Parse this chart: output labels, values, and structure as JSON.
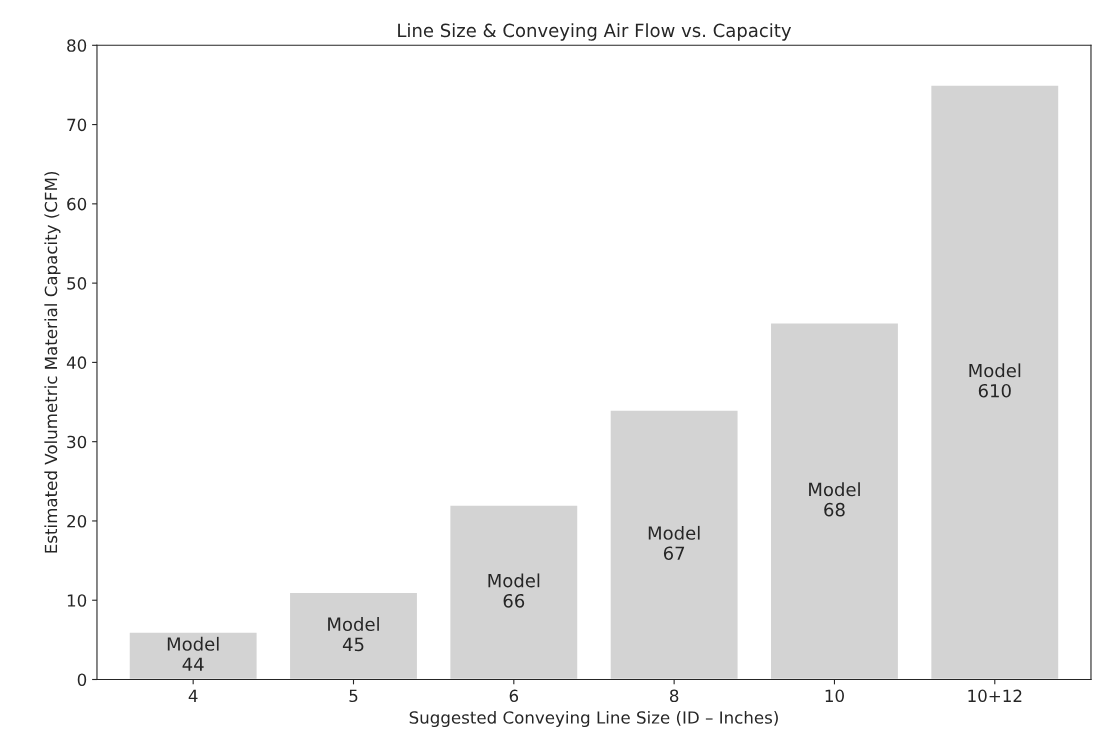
{
  "chart_data": {
    "type": "bar",
    "title": "Line Size & Conveying Air Flow vs. Capacity",
    "xlabel": "Suggested Conveying Line Size (ID – Inches)",
    "ylabel": "Estimated Volumetric Material Capacity (CFM)",
    "categories": [
      "4",
      "5",
      "6",
      "8",
      "10",
      "10+12"
    ],
    "values": [
      6,
      11,
      22,
      34,
      45,
      75
    ],
    "color": "#d3d3d3",
    "ylim": [
      0,
      80
    ],
    "yticks": [
      0,
      10,
      20,
      30,
      40,
      50,
      60,
      70,
      80
    ],
    "grid": false,
    "legend": false,
    "value_labels": [
      "Model\n44",
      "Model\n45",
      "Model\n66",
      "Model\n67",
      "Model\n68",
      "Model\n610"
    ]
  }
}
